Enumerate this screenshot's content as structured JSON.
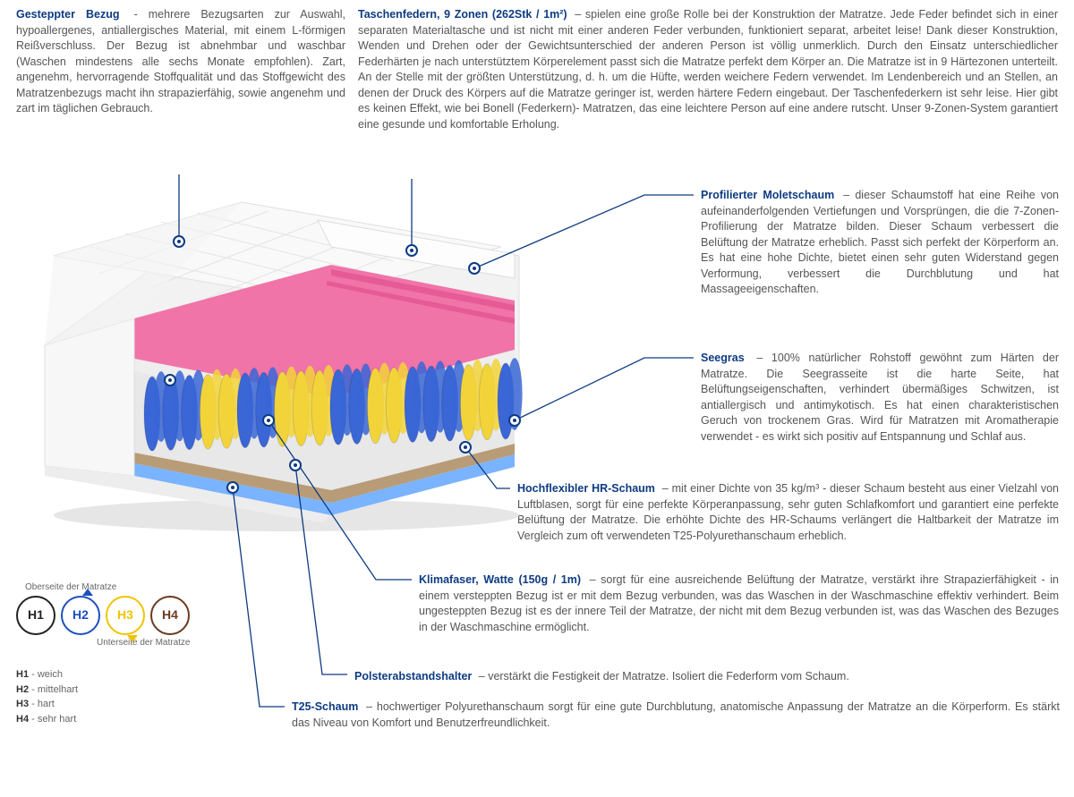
{
  "sections": {
    "cover": {
      "title": "Gesteppter Bezug",
      "text": " - mehrere Bezugsarten zur Auswahl, hypoallergenes, antiallergisches Material, mit einem L-förmigen Reißverschluss. Der Bezug ist abnehmbar und waschbar (Waschen mindestens alle sechs Monate empfohlen). Zart, angenehm, hervorragende Stoffqualität und das Stoffgewicht des Matratzenbezugs macht ihn strapazierfähig, sowie angenehm und zart im täglichen Gebrauch."
    },
    "springs": {
      "title": "Taschenfedern, 9 Zonen (262Stk / 1m²)",
      "text": " – spielen eine große Rolle bei der Konstruktion der Matratze. Jede Feder befindet sich in einer separaten Materialtasche und ist nicht mit einer anderen Feder verbunden, funktioniert separat, arbeitet leise! Dank dieser Konstruktion, Wenden und Drehen oder der Gewichtsunterschied der anderen Person ist völlig unmerklich. Durch den Einsatz unterschiedlicher Federhärten je nach unterstütztem Körperelement passt sich die Matratze perfekt dem Körper an. Die Matratze ist in 9 Härtezonen unterteilt. An der Stelle mit der größten Unterstützung, d. h. um die Hüfte, werden weichere Federn verwendet. Im Lendenbereich und an Stellen, an denen der Druck des Körpers auf die Matratze geringer ist, werden härtere Federn eingebaut. Der Taschenfederkern ist sehr leise. Hier gibt es keinen Effekt, wie bei Bonell (Federkern)- Matratzen, das eine leichtere Person auf eine andere rutscht. Unser 9-Zonen-System garantiert eine gesunde und komfortable Erholung."
    },
    "molet": {
      "title": "Profilierter Moletschaum",
      "text": " – dieser Schaumstoff hat eine Reihe von aufeinanderfolgenden Vertiefungen und Vorsprüngen, die die 7-Zonen-Profilierung der Matratze bilden. Dieser Schaum verbessert die Belüftung der Matratze erheblich. Passt sich perfekt der Körperform an. Es hat eine hohe Dichte, bietet einen sehr guten Widerstand gegen Verformung, verbessert die Durchblutung und hat Massageeigenschaften."
    },
    "seagrass": {
      "title": "Seegras",
      "text": " – 100% natürlicher Rohstoff gewöhnt zum Härten der Matratze. Die Seegrasseite ist die harte Seite, hat Belüftungseigenschaften, verhindert übermäßiges Schwitzen, ist antiallergisch und antimykotisch. Es hat einen charakteristischen Geruch von trockenem Gras. Wird für Matratzen mit Aromatherapie verwendet - es wirkt sich positiv auf Entspannung und Schlaf aus."
    },
    "hr": {
      "title": "Hochflexibler HR-Schaum",
      "text": " – mit einer Dichte von 35 kg/m³ - dieser Schaum besteht aus einer Vielzahl von Luftblasen, sorgt für eine perfekte Körperanpassung, sehr guten Schlafkomfort und garantiert eine perfekte Belüftung der Matratze. Die erhöhte Dichte des HR-Schaums verlängert die Haltbarkeit der Matratze im Vergleich zum oft verwendeten T25-Polyurethanschaum erheblich."
    },
    "klima": {
      "title": "Klimafaser, Watte (150g / 1m)",
      "text": " – sorgt für eine ausreichende Belüftung der Matratze, verstärkt ihre Strapazierfähigkeit - in einem versteppten Bezug ist er mit dem Bezug verbunden, was das Waschen in der Waschmaschine effektiv verhindert. Beim ungesteppten Bezug ist es der innere Teil der Matratze, der nicht mit dem Bezug verbunden ist, was das Waschen des Bezuges in der Waschmaschine ermöglicht."
    },
    "polster": {
      "title": "Polsterabstandshalter",
      "text": " – verstärkt die Festigkeit der Matratze. Isoliert die Federform vom Schaum."
    },
    "t25": {
      "title": "T25-Schaum",
      "text": " – hochwertiger Polyurethanschaum sorgt für eine gute Durchblutung, anatomische Anpassung der Matratze an die Körperform. Es stärkt das Niveau von Komfort und Benutzerfreundlichkeit."
    }
  },
  "legend": {
    "top_label": "Oberseite der Matratze",
    "bottom_label": "Unterseite der Matratze",
    "circles": [
      {
        "label": "H1",
        "color": "#222222"
      },
      {
        "label": "H2",
        "color": "#1e4fbd"
      },
      {
        "label": "H3",
        "color": "#f0c400"
      },
      {
        "label": "H4",
        "color": "#6b3a1e"
      }
    ],
    "hardness": [
      {
        "code": "H1",
        "desc": "weich"
      },
      {
        "code": "H2",
        "desc": "mittelhart"
      },
      {
        "code": "H3",
        "desc": "hart"
      },
      {
        "code": "H4",
        "desc": "sehr hart"
      }
    ]
  },
  "illustration": {
    "layers": {
      "cover_top": "#f5f5f5",
      "molet_pink": "#f26fa6",
      "spacer": "#e9e7e5",
      "springs_blue": "#3a66d6",
      "springs_yellow": "#f2d43a",
      "seagrass": "#b89c78",
      "hr_blue": "#7ab3ff",
      "side_white": "#f7f7f7",
      "shadow": "#d0d0d0"
    }
  },
  "connectors": {
    "color": "#0d3b82",
    "width": 1.3
  }
}
